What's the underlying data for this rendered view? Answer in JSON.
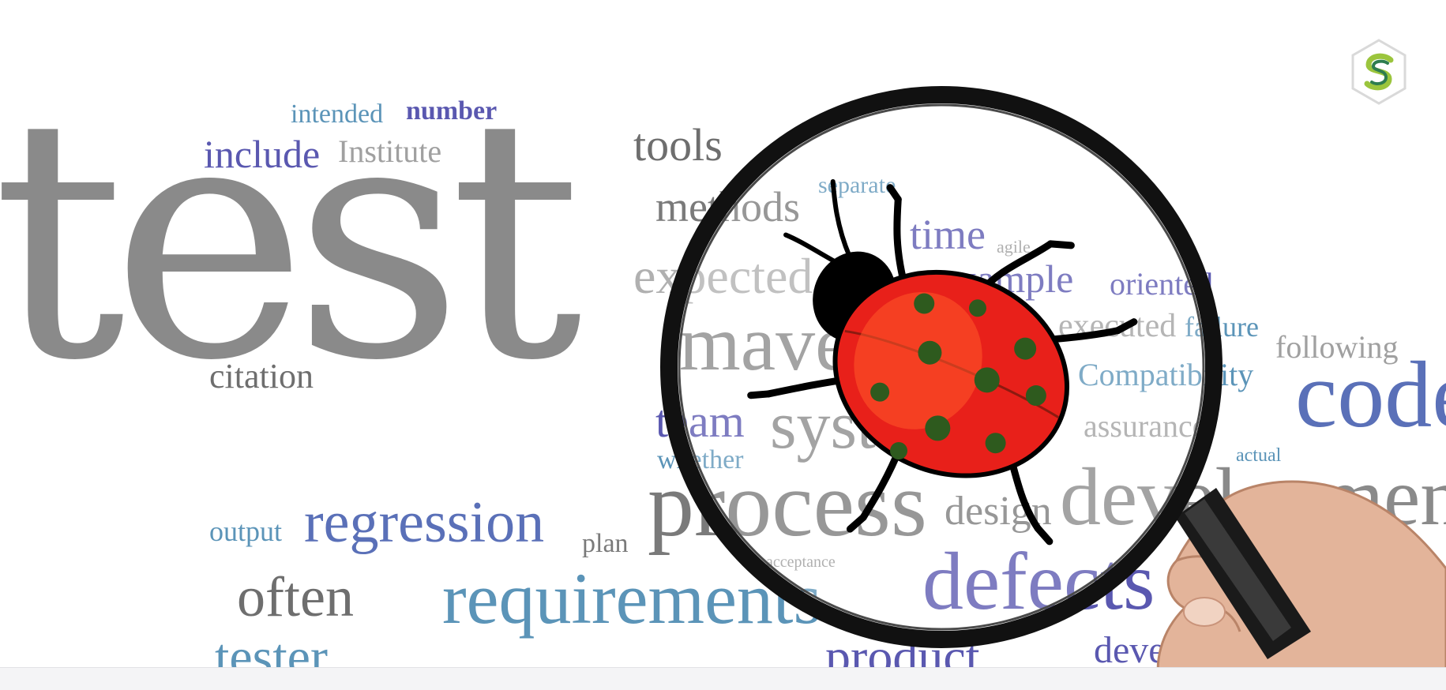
{
  "logo": {
    "icon": "s-hexagon-logo",
    "colors": [
      "#2e7d4f",
      "#9bc53d",
      "#d9d9d9"
    ]
  },
  "cloud": {
    "test": "test",
    "intended": "intended",
    "number": "number",
    "include": "include",
    "institute": "Institute",
    "tools": "tools",
    "methods": "methods",
    "separate": "separate",
    "time": "time",
    "agile": "agile",
    "expected": "expected",
    "example": "example",
    "oriented": "oriented",
    "executed": "executed",
    "failure": "failure",
    "following": "following",
    "maven": "maven",
    "compatibility": "Compatibility",
    "citation": "citation",
    "team": "team",
    "system": "system",
    "assurance": "assurance",
    "code": "code",
    "whether": "whether",
    "actual": "actual",
    "process": "process",
    "design": "design",
    "development": "development",
    "output": "output",
    "regression": "regression",
    "plan": "plan",
    "acceptance": "acceptance",
    "often": "often",
    "requirements": "requirements",
    "defects": "defects",
    "tester": "tester",
    "product": "product",
    "dev": "deve"
  },
  "colors": {
    "gray": "#8a8a8a",
    "purple": "#5a58b0",
    "teal": "#5b94b8",
    "bug_red": "#e8201a",
    "bug_spots": "#2e5a1e"
  }
}
